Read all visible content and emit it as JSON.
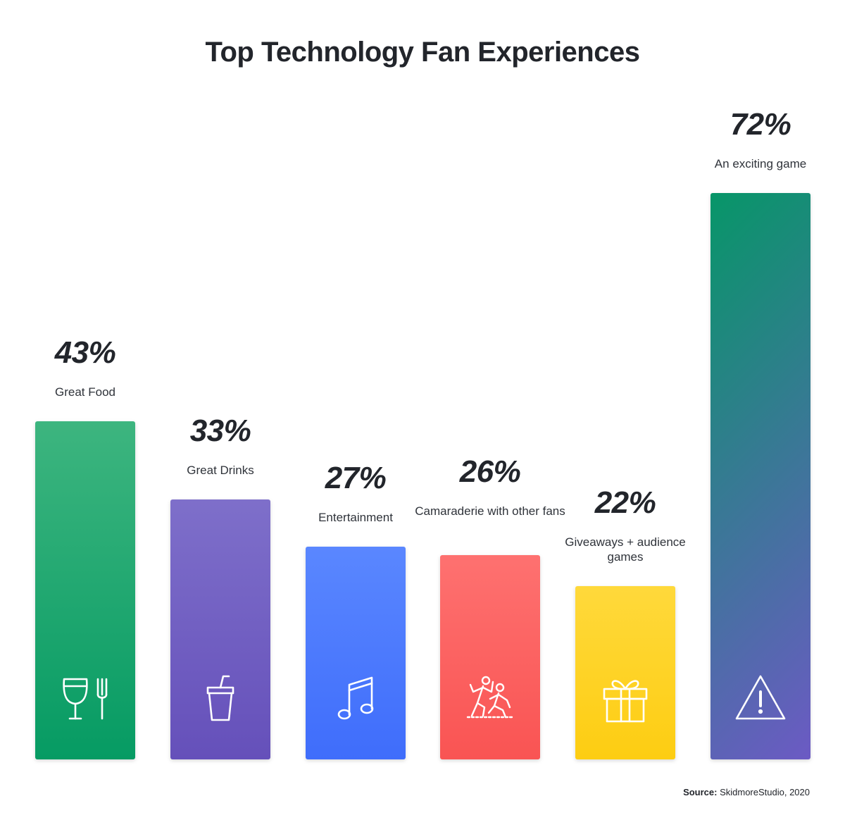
{
  "chart_data": {
    "type": "bar",
    "title": "Top Technology Fan Experiences",
    "categories": [
      "Great Food",
      "Great Drinks",
      "Entertainment",
      "Camaraderie with other fans",
      "Giveaways + audience games",
      "An exciting game"
    ],
    "values": [
      43,
      33,
      27,
      26,
      22,
      72
    ],
    "value_labels": [
      "43%",
      "33%",
      "27%",
      "26%",
      "22%",
      "72%"
    ],
    "ylim": [
      0,
      72
    ],
    "unit": "%",
    "grid": false,
    "legend": "none"
  },
  "bars": [
    {
      "label": "Great Food",
      "value": "43%",
      "icon": "utensils-icon",
      "color_top": "#3db57f",
      "color_bottom": "#069b63",
      "gradient": "vertical"
    },
    {
      "label": "Great Drinks",
      "value": "33%",
      "icon": "drink-cup-icon",
      "color_top": "#7e6fca",
      "color_bottom": "#6550ba",
      "gradient": "vertical"
    },
    {
      "label": "Entertainment",
      "value": "27%",
      "icon": "music-note-icon",
      "color_top": "#5a87ff",
      "color_bottom": "#3f6dfb",
      "gradient": "vertical"
    },
    {
      "label": "Camaraderie with other fans",
      "value": "26%",
      "icon": "fans-celebrating-icon",
      "color_top": "#fe7170",
      "color_bottom": "#f95453",
      "gradient": "vertical"
    },
    {
      "label": "Giveaways + audience games",
      "value": "22%",
      "icon": "gift-icon",
      "color_top": "#ffd93b",
      "color_bottom": "#fdcd12",
      "gradient": "vertical"
    },
    {
      "label": "An exciting game",
      "value": "72%",
      "icon": "warning-icon",
      "color_top": "#079668",
      "color_bottom": "#6c5ac4",
      "gradient": "diagonal"
    }
  ],
  "source": {
    "prefix": "Source:",
    "text": " SkidmoreStudio, 2020"
  }
}
